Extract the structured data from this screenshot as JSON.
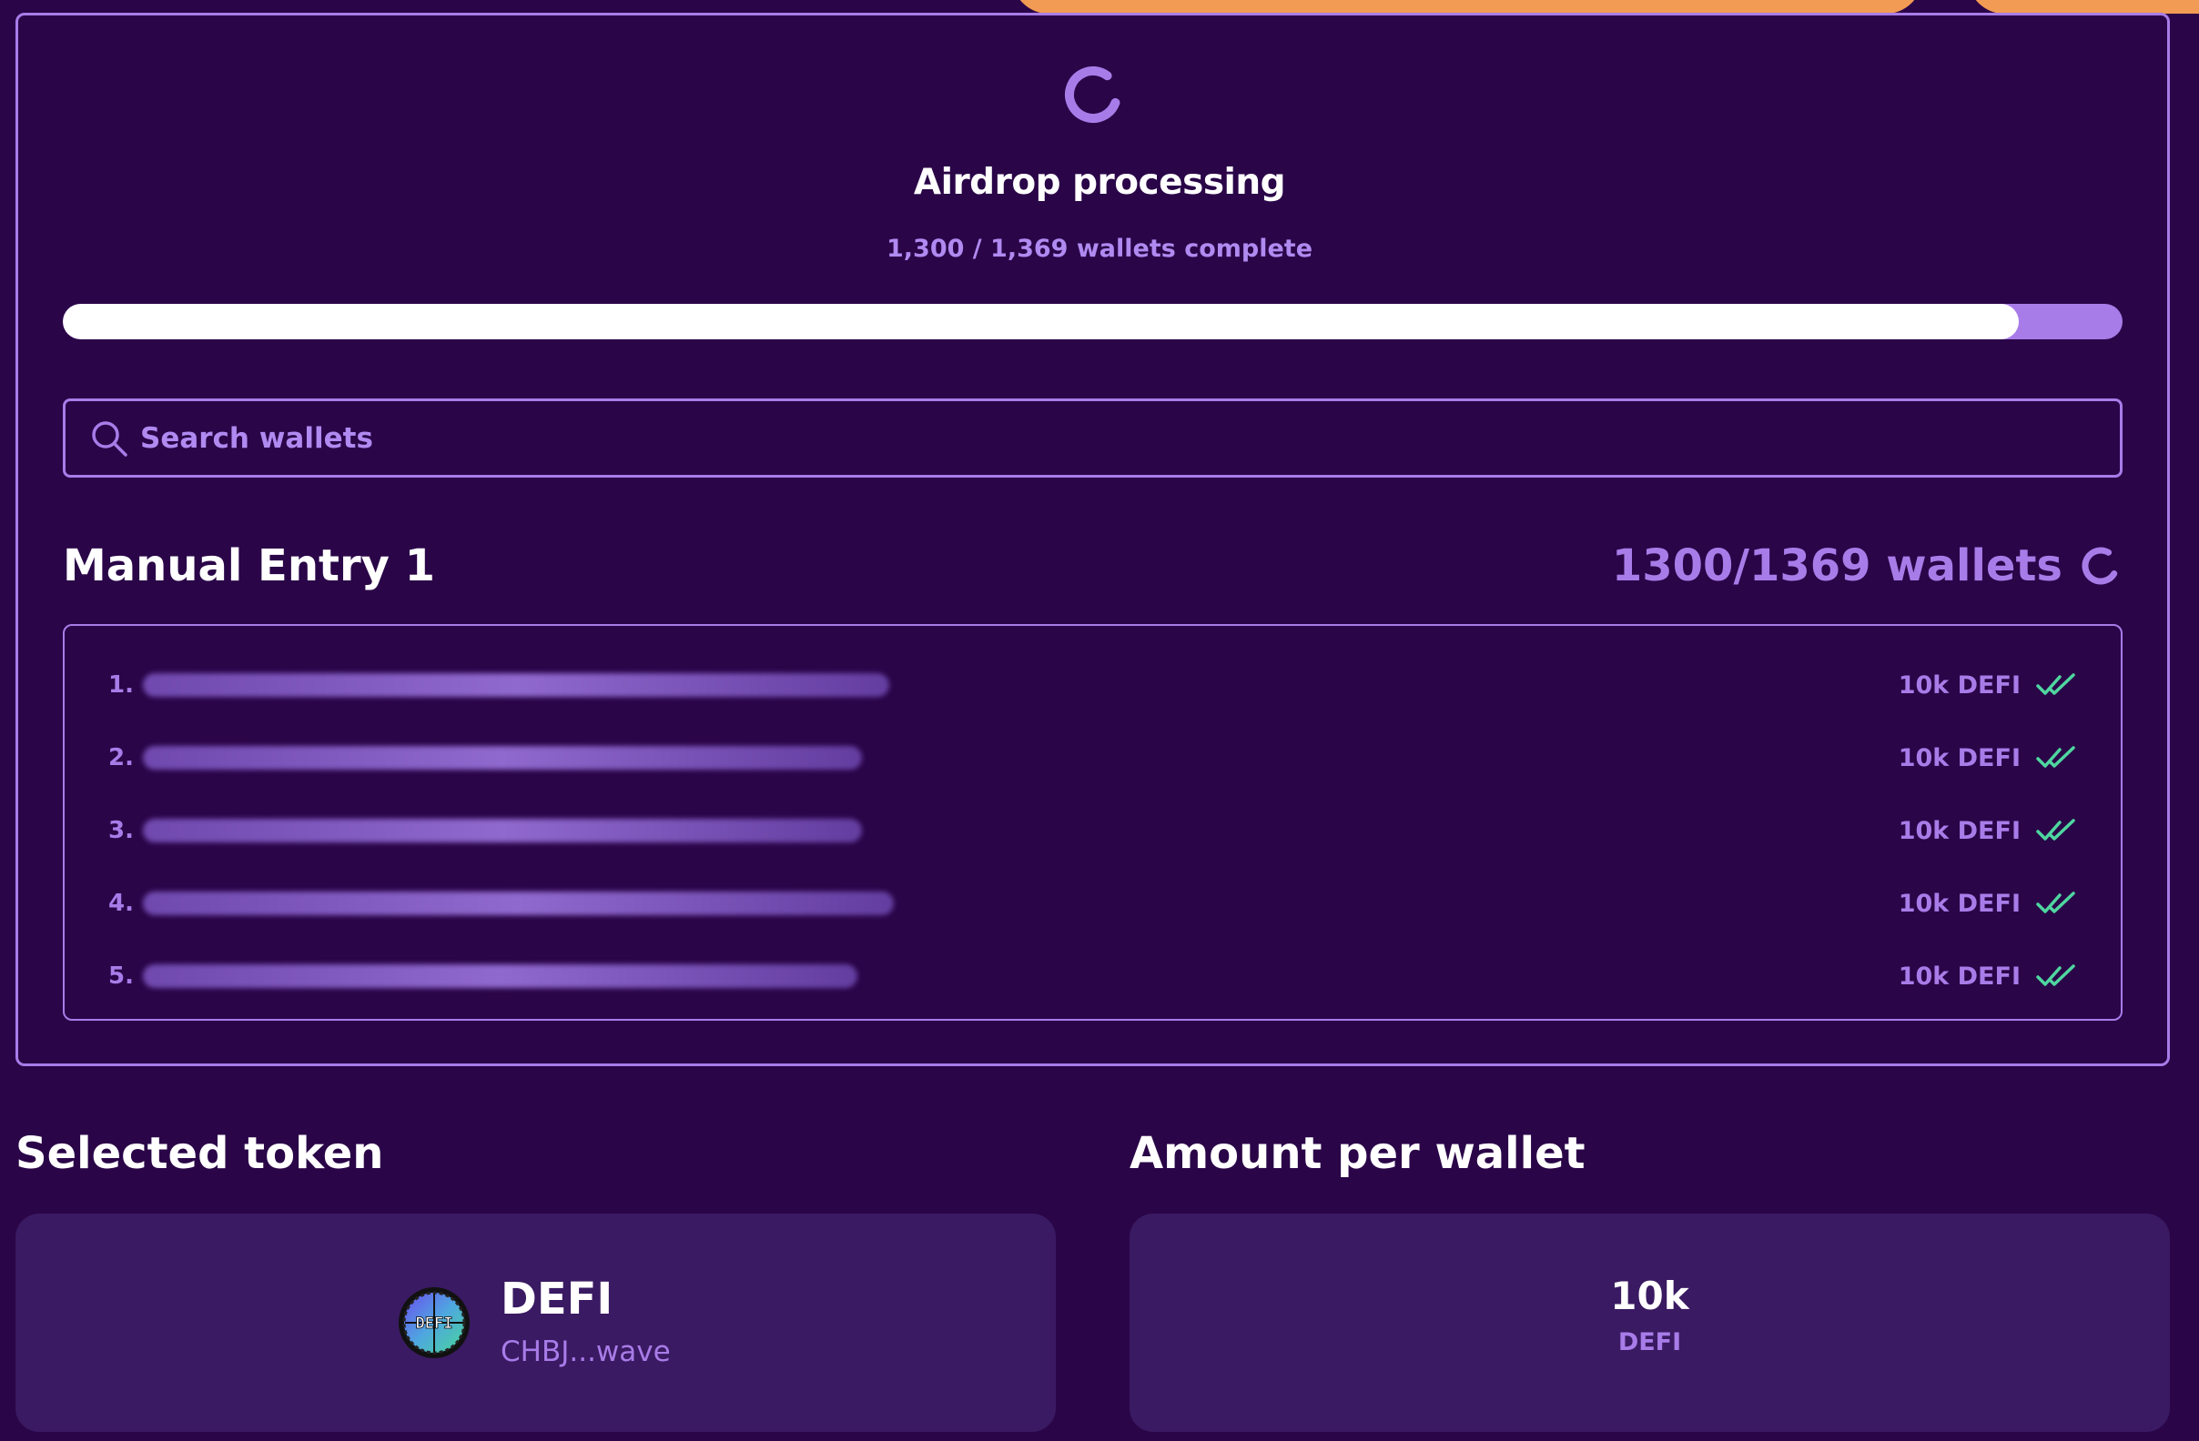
{
  "processing": {
    "title": "Airdrop processing",
    "subtitle": "1,300 / 1,369 wallets complete",
    "progress_fraction": 0.9496
  },
  "search": {
    "placeholder": "Search wallets"
  },
  "entry": {
    "title": "Manual Entry 1",
    "count": "1300/1369 wallets"
  },
  "wallets": [
    {
      "index": "1.",
      "amount": "10k DEFI"
    },
    {
      "index": "2.",
      "amount": "10k DEFI"
    },
    {
      "index": "3.",
      "amount": "10k DEFI"
    },
    {
      "index": "4.",
      "amount": "10k DEFI"
    },
    {
      "index": "5.",
      "amount": "10k DEFI"
    }
  ],
  "selected_token": {
    "label": "Selected token",
    "name": "DEFI",
    "address": "CHBJ...wave",
    "logo_text": "DEFI"
  },
  "amount_per_wallet": {
    "label": "Amount per wallet",
    "value": "10k",
    "unit": "DEFI"
  },
  "colors": {
    "background": "#2a0548",
    "accent": "#a87ce8",
    "card": "#3a1a62",
    "orange": "#f19b54",
    "check": "#4fd6a0"
  },
  "icons": {
    "spinner": "spinner-icon",
    "search": "search-icon",
    "check": "double-check-icon"
  }
}
